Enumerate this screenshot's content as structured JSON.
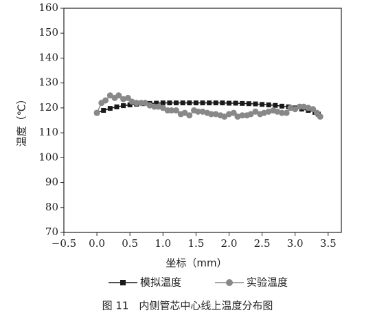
{
  "chart_data": {
    "type": "line",
    "caption": "图 11　内侧管芯中心线上温度分布图",
    "x_label": "坐标（mm）",
    "y_label": "温度（℃）",
    "xlim": [
      -0.5,
      3.7
    ],
    "ylim": [
      70,
      160
    ],
    "xticks": [
      {
        "value": -0.5,
        "label": "−0.5"
      },
      {
        "value": 0,
        "label": "0.0"
      },
      0.5,
      {
        "value": 1,
        "label": "1.0"
      },
      1.5,
      {
        "value": 2,
        "label": "2.0"
      },
      2.5,
      {
        "value": 3,
        "label": "3.0"
      },
      3.5
    ],
    "yticks": [
      70,
      80,
      90,
      100,
      110,
      120,
      130,
      140,
      150,
      160
    ],
    "series": [
      {
        "name": "模拟温度",
        "color": "#1a1a1a",
        "marker": "square",
        "x": [
          0,
          0.1,
          0.2,
          0.3,
          0.4,
          0.5,
          0.6,
          0.7,
          0.8,
          0.9,
          1.0,
          1.1,
          1.2,
          1.3,
          1.4,
          1.5,
          1.6,
          1.7,
          1.8,
          1.9,
          2.0,
          2.1,
          2.2,
          2.3,
          2.4,
          2.5,
          2.6,
          2.7,
          2.8,
          2.9,
          3.0,
          3.1,
          3.2,
          3.3,
          3.35
        ],
        "values": [
          118,
          119,
          119.8,
          120.4,
          120.9,
          121.2,
          121.5,
          121.7,
          121.8,
          121.9,
          122,
          122,
          122,
          122,
          122,
          122,
          122,
          122,
          122,
          122,
          121.9,
          121.9,
          121.8,
          121.7,
          121.6,
          121.4,
          121.2,
          121,
          120.7,
          120.4,
          120,
          119.5,
          119,
          118.2,
          117.5
        ]
      },
      {
        "name": "实验温度",
        "color": "#888888",
        "marker": "circle",
        "x": [
          0,
          0.07,
          0.13,
          0.2,
          0.27,
          0.33,
          0.4,
          0.47,
          0.53,
          0.6,
          0.67,
          0.73,
          0.8,
          0.87,
          0.93,
          1.0,
          1.07,
          1.13,
          1.2,
          1.27,
          1.33,
          1.4,
          1.47,
          1.53,
          1.6,
          1.67,
          1.73,
          1.8,
          1.87,
          1.93,
          2.0,
          2.07,
          2.13,
          2.2,
          2.27,
          2.33,
          2.4,
          2.47,
          2.53,
          2.6,
          2.67,
          2.73,
          2.8,
          2.87,
          2.93,
          3.0,
          3.07,
          3.13,
          3.2,
          3.27,
          3.33,
          3.38
        ],
        "values": [
          118,
          122,
          123,
          125,
          124,
          125,
          123.5,
          124,
          122.5,
          122,
          122,
          122,
          121,
          120.5,
          120.5,
          120,
          119,
          119,
          119,
          117.5,
          118,
          117,
          119,
          118.5,
          118.5,
          118,
          117.5,
          117.5,
          117,
          116.5,
          117.5,
          118,
          116.5,
          117,
          117,
          117.5,
          118.5,
          117.5,
          118,
          118.5,
          119,
          118.5,
          118,
          118,
          120,
          119.5,
          120.5,
          120.5,
          120,
          119.5,
          118,
          116.5
        ]
      }
    ]
  }
}
